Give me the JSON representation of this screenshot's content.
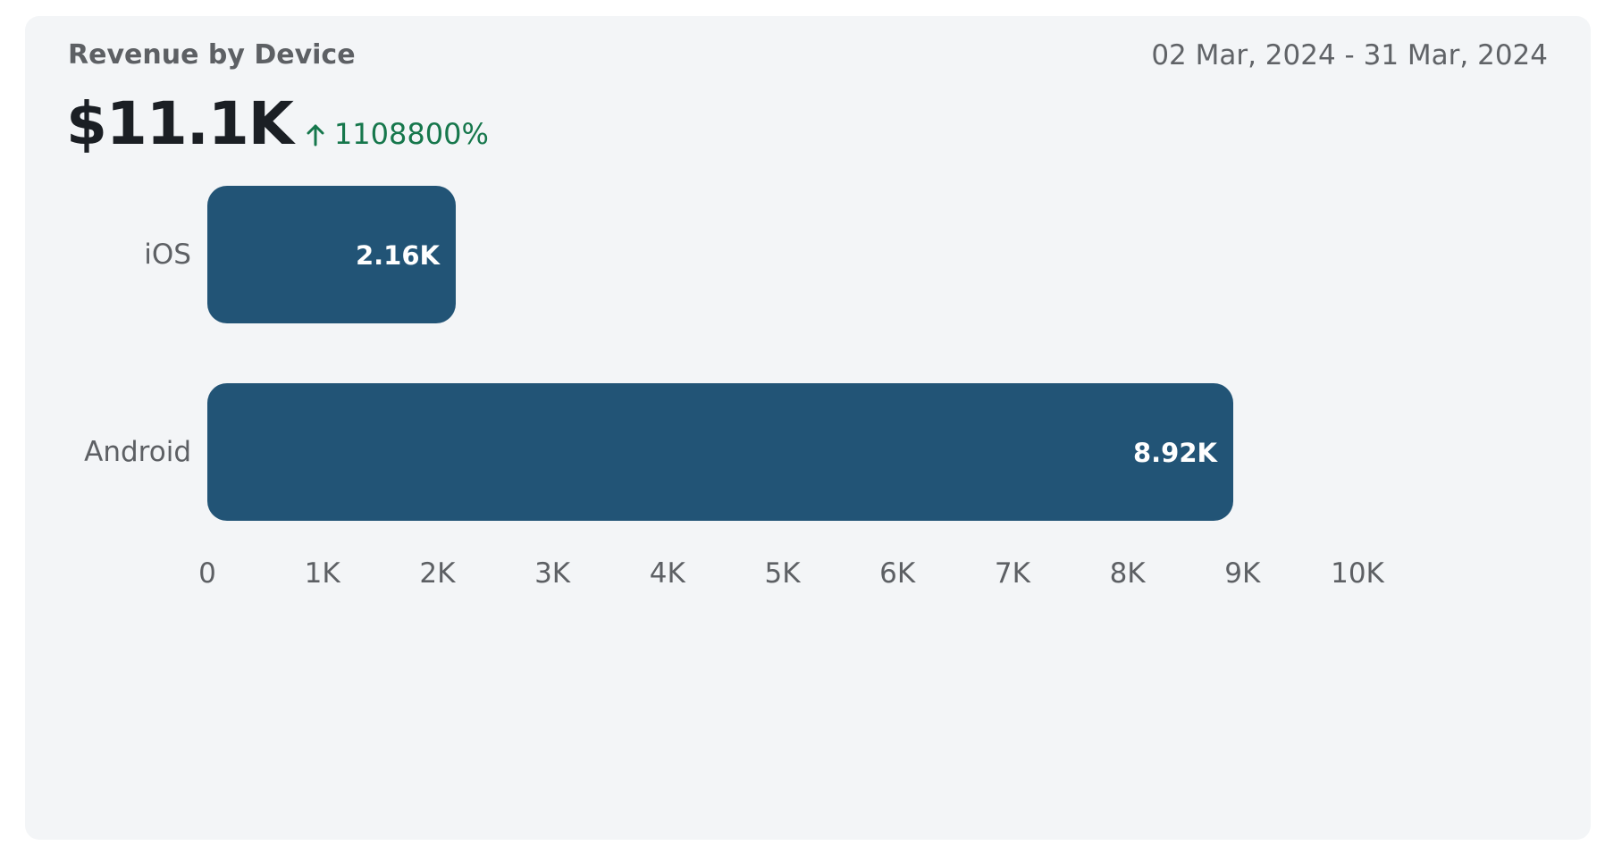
{
  "card": {
    "title": "Revenue by Device",
    "date_range": "02 Mar, 2024 - 31 Mar, 2024",
    "kpi_value": "$11.1K",
    "kpi_change": "1108800%",
    "kpi_change_icon": "arrow-up-icon",
    "kpi_change_color": "#16774c"
  },
  "chart_data": {
    "type": "bar",
    "orientation": "horizontal",
    "categories": [
      "iOS",
      "Android"
    ],
    "values": [
      2160,
      8920
    ],
    "data_labels": [
      "2.16K",
      "8.92K"
    ],
    "xlim": [
      0,
      10000
    ],
    "xticks": [
      0,
      1000,
      2000,
      3000,
      4000,
      5000,
      6000,
      7000,
      8000,
      9000,
      10000
    ],
    "xtick_labels": [
      "0",
      "1K",
      "2K",
      "3K",
      "4K",
      "5K",
      "6K",
      "7K",
      "8K",
      "9K",
      "10K"
    ],
    "bar_color": "#225476",
    "grid": false,
    "legend": "none"
  }
}
